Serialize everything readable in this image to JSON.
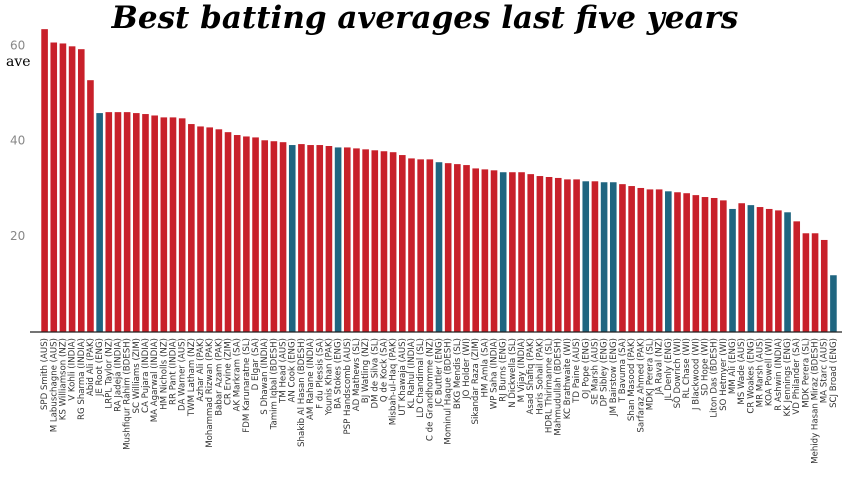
{
  "chart_data": {
    "type": "bar",
    "title": "Best batting averages last five years",
    "y_label": "ave",
    "ylim": [
      0,
      65
    ],
    "yticks": [
      20,
      40,
      60
    ],
    "grid": false,
    "categories": [
      "SPD Smith (AUS)",
      "M Labuschagne (AUS)",
      "KS Williamson (NZ)",
      "V Kohli (INDIA)",
      "RG Sharma (INDIA)",
      "Abid Ali (PAK)",
      "JE Root (ENG)",
      "LRPL Taylor (NZ)",
      "RA Jadeja (INDIA)",
      "Mushfiqur Rahim (BDESH)",
      "SC Williams (ZIM)",
      "CA Pujara (INDIA)",
      "MA Agarwal (INDIA)",
      "HM Nicholls (NZ)",
      "RR Pant (INDIA)",
      "DA Warner (AUS)",
      "TWM Latham (NZ)",
      "Azhar Ali (PAK)",
      "Mohammad Rizwan (PAK)",
      "Babar Azam (PAK)",
      "CR Ervine (ZIM)",
      "AK Markram (SA)",
      "FDM Karunaratne (SL)",
      "D Elgar (SA)",
      "S Dhawan (INDIA)",
      "Tamim Iqbal (BDESH)",
      "TM Head (AUS)",
      "AN Cook (ENG)",
      "Shakib Al Hasan (BDESH)",
      "AM Rahane (INDIA)",
      "F du Plessis (SA)",
      "Younis Khan (PAK)",
      "BA Stokes (ENG)",
      "PSP Handscomb (AUS)",
      "AD Mathews (SL)",
      "BJ Watling (NZ)",
      "DM de Silva (SL)",
      "Q de Kock (SA)",
      "Misbah-ul-Haq (PAK)",
      "UT Khawaja (AUS)",
      "KL Rahul (INDIA)",
      "LD Chandimal (SL)",
      "C de Grandhomme (NZ)",
      "JC Buttler (ENG)",
      "Mominul Haque (BDESH)",
      "BKG Mendis (SL)",
      "JO Holder (WI)",
      "Sikandar Raza (ZIM)",
      "HM Amla (SA)",
      "WP Saha (INDIA)",
      "RJ Burns (ENG)",
      "N Dickwella (SL)",
      "M Vijay (INDIA)",
      "Asad Shafiq (PAK)",
      "Haris Sohail (PAK)",
      "HDRL Thirimanne (SL)",
      "Mahmudullah (BDESH)",
      "KC Brathwaite (WI)",
      "TD Paine (AUS)",
      "OJ Pope (ENG)",
      "SE Marsh (AUS)",
      "DP Sibley (ENG)",
      "JM Bairstow (ENG)",
      "T Bavuma (SA)",
      "Shan Masood (PAK)",
      "Sarfaraz Ahmed (PAK)",
      "MDKJ Perera (SL)",
      "JA Raval (NZ)",
      "JL Denly (ENG)",
      "SO Dowrich (WI)",
      "RL Chase (WI)",
      "J Blackwood (WI)",
      "SD Hope (WI)",
      "Liton Das (BDESH)",
      "SO Hetmyer (WI)",
      "MM Ali (ENG)",
      "MS Wade (AUS)",
      "CR Woakes (ENG)",
      "MR Marsh (AUS)",
      "KOA Powell (WI)",
      "R Ashwin (INDIA)",
      "KK Jennings (ENG)",
      "VD Philander (SA)",
      "MDK Perera (SL)",
      "Mehidy Hasan Miraz (BDESH)",
      "MA Starc (AUS)",
      "SCJ Broad (ENG)"
    ],
    "values": [
      63.5,
      60.7,
      60.5,
      59.9,
      59.3,
      52.8,
      45.9,
      46.1,
      46.1,
      46.1,
      45.9,
      45.7,
      45.4,
      45,
      45,
      44.8,
      43.6,
      43.1,
      42.9,
      42.5,
      41.9,
      41.3,
      41,
      40.8,
      40.2,
      40,
      39.8,
      39.2,
      39.4,
      39.2,
      39.2,
      39,
      38.7,
      38.7,
      38.5,
      38.3,
      38.1,
      37.9,
      37.7,
      37.1,
      36.4,
      36.2,
      36.2,
      35.6,
      35.4,
      35.2,
      35,
      34.3,
      34.1,
      33.9,
      33.5,
      33.5,
      33.5,
      33.1,
      32.7,
      32.5,
      32.3,
      32,
      32,
      31.6,
      31.6,
      31.4,
      31.4,
      31,
      30.6,
      30.2,
      29.9,
      29.9,
      29.5,
      29.3,
      29.1,
      28.7,
      28.3,
      28.1,
      27.6,
      25.8,
      27,
      26.6,
      26.2,
      25.8,
      25.5,
      25.1,
      23.2,
      20.7,
      20.7,
      19.3,
      11.9
    ],
    "colors": [
      "#c8202a",
      "#c8202a",
      "#c8202a",
      "#c8202a",
      "#c8202a",
      "#c8202a",
      "#1f6580",
      "#c8202a",
      "#c8202a",
      "#c8202a",
      "#c8202a",
      "#c8202a",
      "#c8202a",
      "#c8202a",
      "#c8202a",
      "#c8202a",
      "#c8202a",
      "#c8202a",
      "#c8202a",
      "#c8202a",
      "#c8202a",
      "#c8202a",
      "#c8202a",
      "#c8202a",
      "#c8202a",
      "#c8202a",
      "#c8202a",
      "#1f6580",
      "#c8202a",
      "#c8202a",
      "#c8202a",
      "#c8202a",
      "#1f6580",
      "#c8202a",
      "#c8202a",
      "#c8202a",
      "#c8202a",
      "#c8202a",
      "#c8202a",
      "#c8202a",
      "#c8202a",
      "#c8202a",
      "#c8202a",
      "#1f6580",
      "#c8202a",
      "#c8202a",
      "#c8202a",
      "#c8202a",
      "#c8202a",
      "#c8202a",
      "#1f6580",
      "#c8202a",
      "#c8202a",
      "#c8202a",
      "#c8202a",
      "#c8202a",
      "#c8202a",
      "#c8202a",
      "#c8202a",
      "#1f6580",
      "#c8202a",
      "#1f6580",
      "#1f6580",
      "#c8202a",
      "#c8202a",
      "#c8202a",
      "#c8202a",
      "#c8202a",
      "#1f6580",
      "#c8202a",
      "#c8202a",
      "#c8202a",
      "#c8202a",
      "#c8202a",
      "#c8202a",
      "#1f6580",
      "#c8202a",
      "#1f6580",
      "#c8202a",
      "#c8202a",
      "#c8202a",
      "#1f6580",
      "#c8202a",
      "#c8202a",
      "#c8202a",
      "#c8202a",
      "#1f6580"
    ]
  }
}
